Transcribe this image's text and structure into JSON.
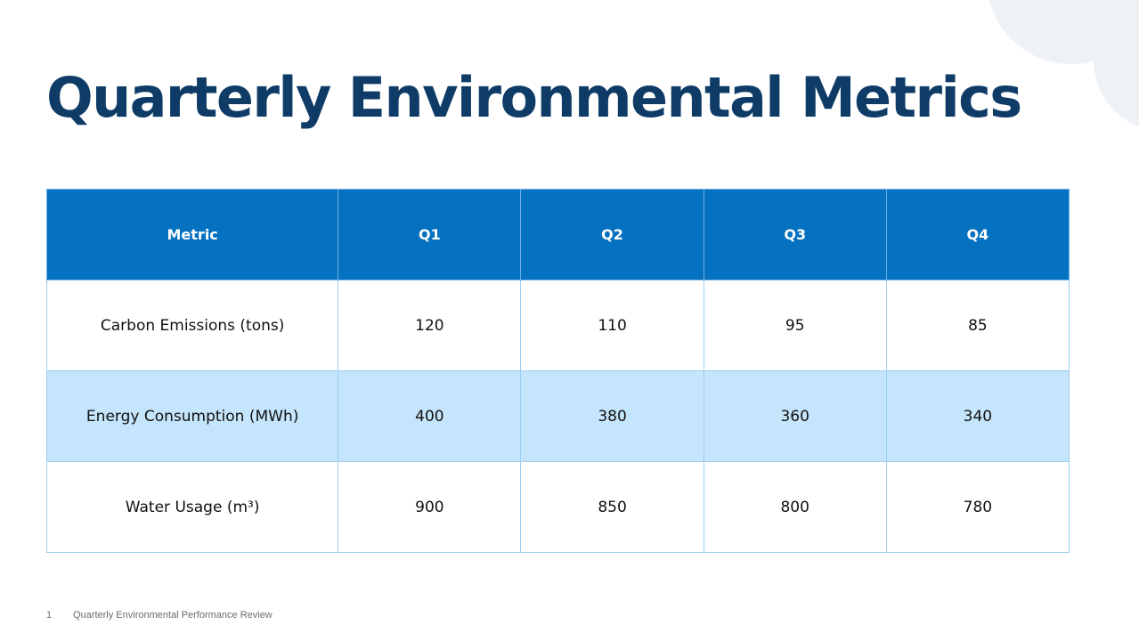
{
  "slide": {
    "title": "Quarterly Environmental Metrics",
    "footer": {
      "page_number": "1",
      "text": "Quarterly Environmental Performance Review"
    }
  },
  "table": {
    "headers": [
      "Metric",
      "Q1",
      "Q2",
      "Q3",
      "Q4"
    ],
    "rows": [
      {
        "metric": "Carbon Emissions (tons)",
        "values": [
          "120",
          "110",
          "95",
          "85"
        ]
      },
      {
        "metric": "Energy Consumption (MWh)",
        "values": [
          "400",
          "380",
          "360",
          "340"
        ]
      },
      {
        "metric": "Water Usage (m³)",
        "values": [
          "900",
          "850",
          "800",
          "780"
        ]
      }
    ]
  },
  "colors": {
    "title": "#0e3c67",
    "header_bg": "#0471c1",
    "band_row_bg": "#c4e5fb",
    "border": "#9dcdf0"
  }
}
